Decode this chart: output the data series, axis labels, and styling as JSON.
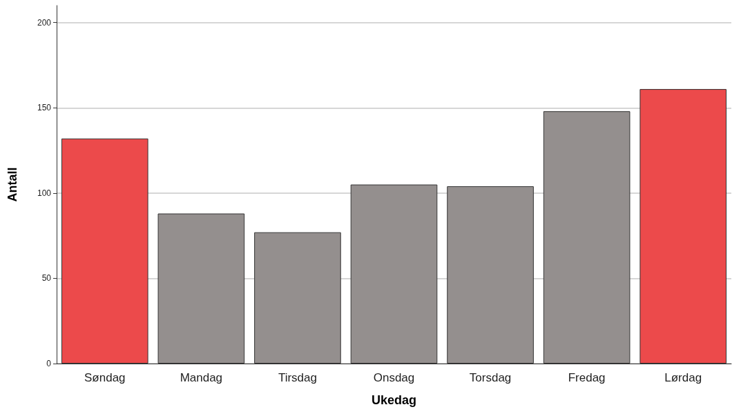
{
  "chart_data": {
    "type": "bar",
    "xlabel": "Ukedag",
    "ylabel": "Antall",
    "categories": [
      "Søndag",
      "Mandag",
      "Tirsdag",
      "Onsdag",
      "Torsdag",
      "Fredag",
      "Lørdag"
    ],
    "values": [
      132,
      88,
      77,
      105,
      104,
      148,
      161
    ],
    "colors": [
      "#ec4a4b",
      "#948f8e",
      "#948f8e",
      "#948f8e",
      "#948f8e",
      "#948f8e",
      "#ec4a4b"
    ],
    "ylim": [
      0,
      210
    ],
    "yticks": [
      0,
      50,
      100,
      150,
      200
    ],
    "grid": "y"
  }
}
